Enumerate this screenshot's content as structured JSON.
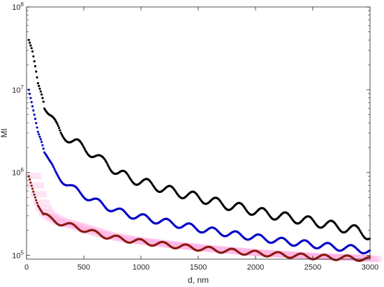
{
  "chart_data": {
    "type": "scatter",
    "title": "",
    "xlabel": "d, nm",
    "ylabel": "MI",
    "xlim": [
      0,
      3000
    ],
    "ylim": [
      90000,
      100000000
    ],
    "yscale": "log",
    "grid": false,
    "x_ticks": [
      0,
      500,
      1000,
      1500,
      2000,
      2500,
      3000
    ],
    "x_tick_labels": [
      "0",
      "500",
      "1000",
      "1500",
      "2000",
      "2500",
      "3000"
    ],
    "y_ticks": [
      100000,
      1000000,
      10000000,
      100000000
    ],
    "y_tick_labels": [
      {
        "base": "10",
        "exp": "5"
      },
      {
        "base": "10",
        "exp": "6"
      },
      {
        "base": "10",
        "exp": "7"
      },
      {
        "base": "10",
        "exp": "8"
      }
    ],
    "series": [
      {
        "color": "#000000",
        "x": [
          20,
          50,
          80,
          100,
          130,
          150,
          200,
          250,
          300,
          350,
          400,
          450,
          500,
          550,
          600,
          650,
          700,
          800,
          900,
          1000,
          1100,
          1200,
          1300,
          1400,
          1500,
          1600,
          1700,
          1800,
          1900,
          2000,
          2100,
          2200,
          2300,
          2400,
          2500,
          2600,
          2700,
          2800,
          2900,
          3000
        ],
        "y": [
          40000000,
          30000000,
          18000000,
          12000000,
          9000000,
          7000000,
          5000000,
          3800000,
          3000000,
          2700000,
          2400000,
          2200000,
          2000000,
          1800000,
          1600000,
          1400000,
          1300000,
          1000000,
          850000,
          780000,
          700000,
          640000,
          580000,
          540000,
          500000,
          460000,
          420000,
          390000,
          370000,
          340000,
          320000,
          300000,
          285000,
          270000,
          255000,
          240000,
          225000,
          210000,
          200000,
          170000
        ],
        "wobble": 0.055
      },
      {
        "color": "#0000c8",
        "x": [
          20,
          50,
          80,
          100,
          130,
          150,
          200,
          250,
          300,
          350,
          400,
          450,
          500,
          550,
          600,
          650,
          700,
          800,
          900,
          1000,
          1100,
          1200,
          1300,
          1400,
          1500,
          1600,
          1700,
          1800,
          1900,
          2000,
          2100,
          2200,
          2300,
          2400,
          2500,
          2600,
          2700,
          2800,
          2900,
          3000
        ],
        "y": [
          10000000,
          6500000,
          4200000,
          3100000,
          2400000,
          1900000,
          1300000,
          1000000,
          850000,
          740000,
          650000,
          590000,
          540000,
          490000,
          450000,
          420000,
          390000,
          340000,
          310000,
          290000,
          270000,
          255000,
          240000,
          225000,
          210000,
          200000,
          190000,
          180000,
          172000,
          165000,
          158000,
          150000,
          145000,
          140000,
          135000,
          130000,
          126000,
          122000,
          120000,
          110000
        ],
        "wobble": 0.04
      },
      {
        "color": "#8b1a10",
        "band_color": "#ffb3e6",
        "x": [
          20,
          50,
          80,
          100,
          130,
          150,
          200,
          250,
          300,
          350,
          400,
          450,
          500,
          550,
          600,
          650,
          700,
          800,
          900,
          1000,
          1100,
          1200,
          1300,
          1400,
          1500,
          1600,
          1700,
          1800,
          1900,
          2000,
          2100,
          2200,
          2300,
          2400,
          2500,
          2600,
          2700,
          2800,
          2900,
          3000
        ],
        "y": [
          900000,
          650000,
          480000,
          400000,
          340000,
          310000,
          280000,
          260000,
          245000,
          235000,
          225000,
          215000,
          205000,
          195000,
          185000,
          178000,
          170000,
          160000,
          152000,
          146000,
          140000,
          135000,
          130000,
          126000,
          122000,
          118000,
          115000,
          112000,
          109000,
          106000,
          104000,
          102000,
          100000,
          98000,
          96000,
          95000,
          94000,
          93000,
          92000,
          89000
        ],
        "wobble": 0.03
      }
    ]
  }
}
